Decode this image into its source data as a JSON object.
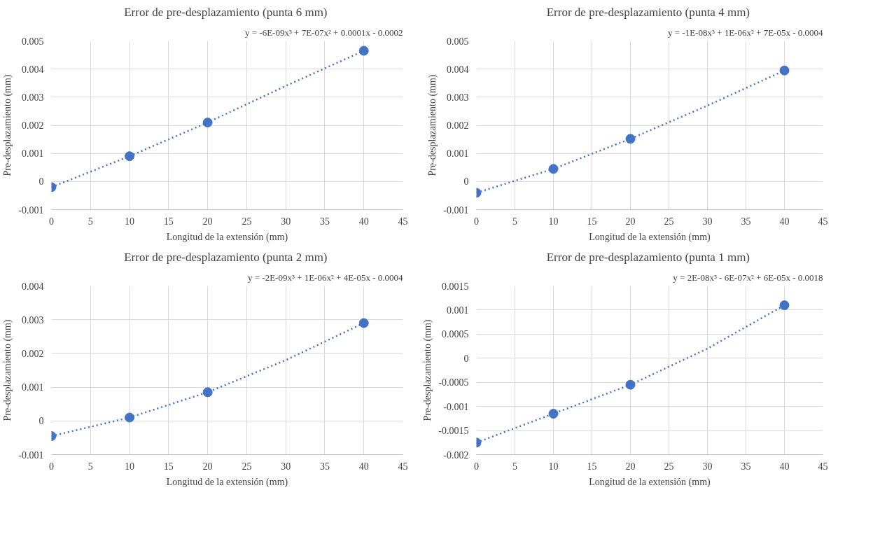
{
  "chart_data": [
    {
      "type": "scatter",
      "title": "Error de pre-desplazamiento  (punta 6 mm)",
      "xlabel": "Longitud de la extensión (mm)",
      "ylabel": "Pre-desplazamiento (mm)",
      "annotations": [
        "y = -6E-09x³ + 7E-07x² + 0.0001x - 0.0002"
      ],
      "x": [
        0,
        10,
        20,
        40
      ],
      "series": [
        {
          "color": "#4472c4",
          "values": [
            -0.0002,
            0.0009,
            0.0021,
            0.00465
          ]
        },
        {
          "type": "line",
          "line_style": "dotted",
          "marker": "none",
          "color": "#4472c4",
          "x": [
            0,
            10,
            20,
            30,
            40
          ],
          "values": [
            -0.0002,
            0.0009,
            0.0021,
            0.0034,
            0.00465
          ]
        }
      ],
      "xlim": [
        0,
        45
      ],
      "xticks": [
        0,
        5,
        10,
        15,
        20,
        25,
        30,
        35,
        40,
        45
      ],
      "ylim": [
        -0.001,
        0.005
      ],
      "yticks": [
        -0.001,
        0,
        0.001,
        0.002,
        0.003,
        0.004,
        0.005
      ],
      "grid": true,
      "marker": "circle"
    },
    {
      "type": "scatter",
      "title": "Error de pre-desplazamiento  (punta 4 mm)",
      "xlabel": "Longitud de la extensión (mm)",
      "ylabel": "Pre-desplazamiento (mm)",
      "annotations": [
        "y = -1E-08x³ + 1E-06x² + 7E-05x - 0.0004"
      ],
      "x": [
        0,
        10,
        20,
        40
      ],
      "series": [
        {
          "color": "#4472c4",
          "values": [
            -0.0004,
            0.00045,
            0.00152,
            0.00395
          ]
        },
        {
          "type": "line",
          "line_style": "dotted",
          "marker": "none",
          "color": "#4472c4",
          "x": [
            0,
            10,
            20,
            30,
            40
          ],
          "values": [
            -0.0004,
            0.00045,
            0.00152,
            0.0027,
            0.00395
          ]
        }
      ],
      "xlim": [
        0,
        45
      ],
      "xticks": [
        0,
        5,
        10,
        15,
        20,
        25,
        30,
        35,
        40,
        45
      ],
      "ylim": [
        -0.001,
        0.005
      ],
      "yticks": [
        -0.001,
        0,
        0.001,
        0.002,
        0.003,
        0.004,
        0.005
      ],
      "grid": true,
      "marker": "circle"
    },
    {
      "type": "scatter",
      "title": "Error de pre-desplazamiento  (punta 2 mm)",
      "xlabel": "Longitud de la extensión (mm)",
      "ylabel": "Pre-desplazamiento (mm)",
      "annotations": [
        "y = -2E-09x³ + 1E-06x² + 4E-05x - 0.0004"
      ],
      "x": [
        0,
        10,
        20,
        40
      ],
      "series": [
        {
          "color": "#4472c4",
          "values": [
            -0.00045,
            0.0001,
            0.00085,
            0.0029
          ]
        },
        {
          "type": "line",
          "line_style": "dotted",
          "marker": "none",
          "color": "#4472c4",
          "x": [
            0,
            10,
            20,
            30,
            40
          ],
          "values": [
            -0.00045,
            0.0001,
            0.00085,
            0.0018,
            0.0029
          ]
        }
      ],
      "xlim": [
        0,
        45
      ],
      "xticks": [
        0,
        5,
        10,
        15,
        20,
        25,
        30,
        35,
        40,
        45
      ],
      "ylim": [
        -0.001,
        0.004
      ],
      "yticks": [
        -0.001,
        0,
        0.001,
        0.002,
        0.003,
        0.004
      ],
      "grid": true,
      "marker": "circle"
    },
    {
      "type": "scatter",
      "title": "Error de pre-desplazamiento  (punta 1 mm)",
      "xlabel": "Longitud de la extensión (mm)",
      "ylabel": "Pre-desplazamiento (mm)",
      "annotations": [
        "y = 2E-08x³ - 6E-07x² + 6E-05x - 0.0018"
      ],
      "x": [
        0,
        10,
        20,
        40
      ],
      "series": [
        {
          "color": "#4472c4",
          "values": [
            -0.00175,
            -0.00115,
            -0.00055,
            0.0011
          ]
        },
        {
          "type": "line",
          "line_style": "dotted",
          "marker": "none",
          "color": "#4472c4",
          "x": [
            0,
            10,
            20,
            30,
            40
          ],
          "values": [
            -0.00175,
            -0.00115,
            -0.00055,
            0.0002,
            0.0011
          ]
        }
      ],
      "xlim": [
        0,
        45
      ],
      "xticks": [
        0,
        5,
        10,
        15,
        20,
        25,
        30,
        35,
        40,
        45
      ],
      "ylim": [
        -0.002,
        0.0015
      ],
      "yticks": [
        -0.002,
        -0.0015,
        -0.001,
        -0.0005,
        0,
        0.0005,
        0.001,
        0.0015
      ],
      "grid": true,
      "marker": "circle"
    }
  ]
}
